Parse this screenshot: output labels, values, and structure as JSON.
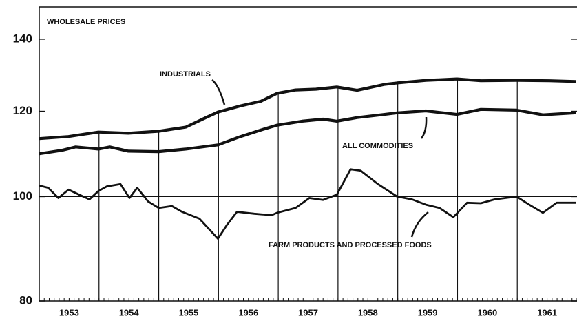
{
  "chart_data": {
    "type": "line",
    "title": "WHOLESALE PRICES",
    "log_scale": true,
    "ylim": [
      80,
      150
    ],
    "yticks": [
      80,
      100,
      120,
      140
    ],
    "reference_line": 100,
    "xlim": [
      1953,
      1962
    ],
    "xticks": [
      {
        "value": 1953.5,
        "label": "1953"
      },
      {
        "value": 1954.5,
        "label": "1954"
      },
      {
        "value": 1955.5,
        "label": "1955"
      },
      {
        "value": 1956.5,
        "label": "1956"
      },
      {
        "value": 1957.5,
        "label": "1957"
      },
      {
        "value": 1958.5,
        "label": "1958"
      },
      {
        "value": 1959.5,
        "label": "1959"
      },
      {
        "value": 1960.5,
        "label": "1960"
      },
      {
        "value": 1961.5,
        "label": "1961"
      }
    ],
    "year_lines": [
      1954,
      1955,
      1956,
      1957,
      1958,
      1959,
      1960,
      1961
    ],
    "series": [
      {
        "name": "INDUSTRIALS",
        "color": "#111111",
        "x": [
          1953.0,
          1953.49,
          1953.99,
          1954.49,
          1955.0,
          1955.45,
          1955.79,
          1955.99,
          1956.37,
          1956.71,
          1956.98,
          1957.29,
          1957.63,
          1957.98,
          1958.32,
          1958.78,
          1958.99,
          1959.47,
          1959.99,
          1960.39,
          1960.99,
          1961.54,
          1961.98
        ],
        "values": [
          113.2,
          113.7,
          114.8,
          114.5,
          115,
          116,
          118.4,
          119.8,
          121.4,
          122.6,
          124.7,
          125.6,
          125.8,
          126.4,
          125.5,
          127.1,
          127.5,
          128.2,
          128.6,
          128.1,
          128.2,
          128.1,
          127.9
        ]
      },
      {
        "name": "ALL COMMODITIES",
        "color": "#111111",
        "x": [
          1953.0,
          1953.38,
          1953.61,
          1953.99,
          1954.18,
          1954.49,
          1955.0,
          1955.45,
          1955.99,
          1956.37,
          1956.71,
          1956.98,
          1957.4,
          1957.75,
          1957.98,
          1958.32,
          1958.78,
          1958.99,
          1959.47,
          1959.99,
          1960.39,
          1960.99,
          1961.43,
          1961.98
        ],
        "values": [
          109.6,
          110.4,
          111.2,
          110.7,
          111.2,
          110.2,
          110.1,
          110.7,
          111.7,
          113.7,
          115.3,
          116.5,
          117.5,
          118,
          117.5,
          118.4,
          119.2,
          119.6,
          120.1,
          119.2,
          120.5,
          120.3,
          119.1,
          119.6
        ]
      },
      {
        "name": "FARM PRODUCTS AND PROCESSED FOODS",
        "color": "#111111",
        "x": [
          1953.0,
          1953.15,
          1953.32,
          1953.49,
          1953.67,
          1953.84,
          1953.99,
          1954.13,
          1954.36,
          1954.51,
          1954.64,
          1954.82,
          1955.0,
          1955.22,
          1955.39,
          1955.68,
          1955.99,
          1956.14,
          1956.31,
          1956.6,
          1956.89,
          1956.98,
          1957.29,
          1957.52,
          1957.75,
          1957.98,
          1958.21,
          1958.38,
          1958.67,
          1958.99,
          1959.24,
          1959.47,
          1959.7,
          1959.93,
          1960.16,
          1960.39,
          1960.62,
          1960.99,
          1961.2,
          1961.43,
          1961.66,
          1961.98
        ],
        "values": [
          102.4,
          101.9,
          99.7,
          101.5,
          100.4,
          99.4,
          101.2,
          102.2,
          102.7,
          99.7,
          101.9,
          99.0,
          97.6,
          98,
          96.8,
          95.4,
          91.4,
          94.1,
          96.8,
          96.4,
          96.1,
          96.6,
          97.6,
          99.7,
          99.3,
          100.4,
          106,
          105.7,
          102.7,
          100,
          99.4,
          98.3,
          97.6,
          95.7,
          98.7,
          98.6,
          99.4,
          100,
          98.3,
          96.6,
          98.7,
          98.7
        ]
      }
    ]
  }
}
